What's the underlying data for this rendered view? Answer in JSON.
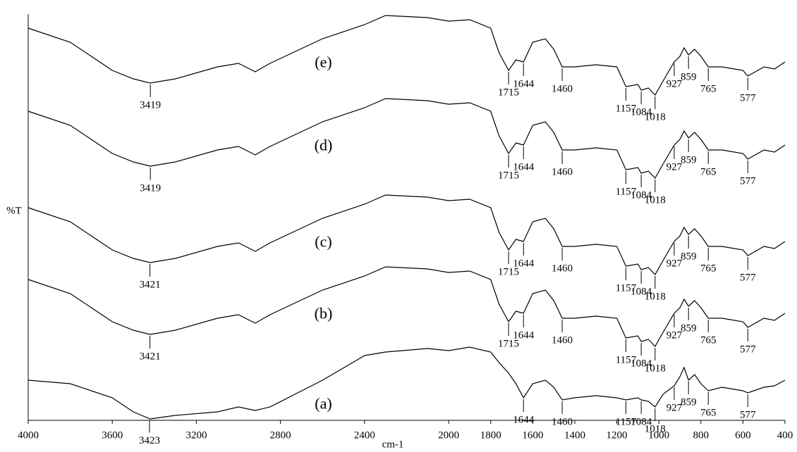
{
  "chart_data": {
    "type": "line",
    "x_label": "cm-1",
    "y_label": "%T",
    "xlim": [
      4000,
      400
    ],
    "xticks": [
      4000,
      3600,
      3200,
      2800,
      2400,
      2000,
      1800,
      1600,
      1400,
      1200,
      1000,
      800,
      600,
      400
    ],
    "ylim": [
      0,
      577
    ],
    "x": [
      4000,
      3800,
      3600,
      3500,
      3420,
      3300,
      3100,
      3000,
      2920,
      2850,
      2600,
      2400,
      2300,
      2100,
      2000,
      1900,
      1800,
      1760,
      1715,
      1680,
      1644,
      1600,
      1540,
      1500,
      1460,
      1400,
      1300,
      1200,
      1157,
      1100,
      1084,
      1050,
      1018,
      980,
      927,
      900,
      880,
      859,
      830,
      800,
      765,
      700,
      600,
      577,
      500,
      450,
      400
    ],
    "series": [
      {
        "name": "(a)",
        "color": "#000000",
        "values": [
          57,
          52,
          32,
          12,
          2,
          7,
          12,
          19,
          14,
          19,
          57,
          92,
          97,
          102,
          99,
          104,
          97,
          82,
          67,
          52,
          32,
          52,
          57,
          47,
          29,
          32,
          35,
          32,
          29,
          32,
          29,
          27,
          19,
          37,
          49,
          62,
          75,
          57,
          65,
          52,
          42,
          47,
          42,
          39,
          47,
          49,
          57
        ],
        "peaks": [
          3423,
          1644,
          1460,
          1157,
          1084,
          1018,
          927,
          859,
          765,
          577
        ]
      },
      {
        "name": "(b)",
        "color": "#000000",
        "values": [
          200,
          180,
          140,
          128,
          122,
          128,
          145,
          150,
          138,
          150,
          185,
          205,
          218,
          215,
          210,
          212,
          200,
          165,
          140,
          155,
          152,
          180,
          185,
          170,
          145,
          145,
          148,
          145,
          117,
          120,
          112,
          115,
          105,
          125,
          152,
          160,
          172,
          162,
          170,
          160,
          145,
          145,
          140,
          132,
          145,
          142,
          152
        ],
        "peaks": [
          3421,
          1715,
          1644,
          1460,
          1157,
          1084,
          1018,
          927,
          859,
          765,
          577
        ]
      },
      {
        "name": "(c)",
        "color": "#000000",
        "values": [
          302,
          282,
          242,
          230,
          224,
          230,
          247,
          252,
          240,
          252,
          287,
          307,
          320,
          317,
          312,
          314,
          302,
          267,
          242,
          257,
          254,
          282,
          287,
          272,
          247,
          247,
          250,
          247,
          219,
          222,
          214,
          217,
          207,
          227,
          254,
          262,
          274,
          264,
          272,
          262,
          247,
          247,
          242,
          234,
          247,
          244,
          254
        ],
        "peaks": [
          3421,
          1715,
          1644,
          1460,
          1157,
          1084,
          1018,
          927,
          859,
          765,
          577
        ]
      },
      {
        "name": "(d)",
        "color": "#000000",
        "values": [
          439,
          419,
          379,
          367,
          361,
          367,
          384,
          389,
          377,
          389,
          424,
          444,
          457,
          454,
          449,
          451,
          439,
          404,
          379,
          394,
          391,
          419,
          424,
          409,
          384,
          384,
          387,
          384,
          356,
          359,
          351,
          354,
          344,
          364,
          391,
          399,
          411,
          401,
          409,
          399,
          384,
          384,
          379,
          371,
          384,
          381,
          391
        ],
        "peaks": [
          3419,
          1715,
          1644,
          1460,
          1157,
          1084,
          1018,
          927,
          859,
          765,
          577
        ]
      },
      {
        "name": "(e)",
        "color": "#000000",
        "values": [
          557,
          537,
          497,
          485,
          479,
          485,
          502,
          507,
          495,
          507,
          542,
          562,
          575,
          572,
          567,
          569,
          557,
          522,
          497,
          512,
          509,
          537,
          542,
          527,
          502,
          502,
          505,
          502,
          474,
          477,
          469,
          472,
          462,
          482,
          509,
          517,
          529,
          519,
          527,
          517,
          502,
          502,
          497,
          489,
          502,
          499,
          509
        ],
        "peaks": [
          3419,
          1715,
          1644,
          1460,
          1157,
          1084,
          1018,
          927,
          859,
          765,
          577
        ]
      }
    ]
  }
}
